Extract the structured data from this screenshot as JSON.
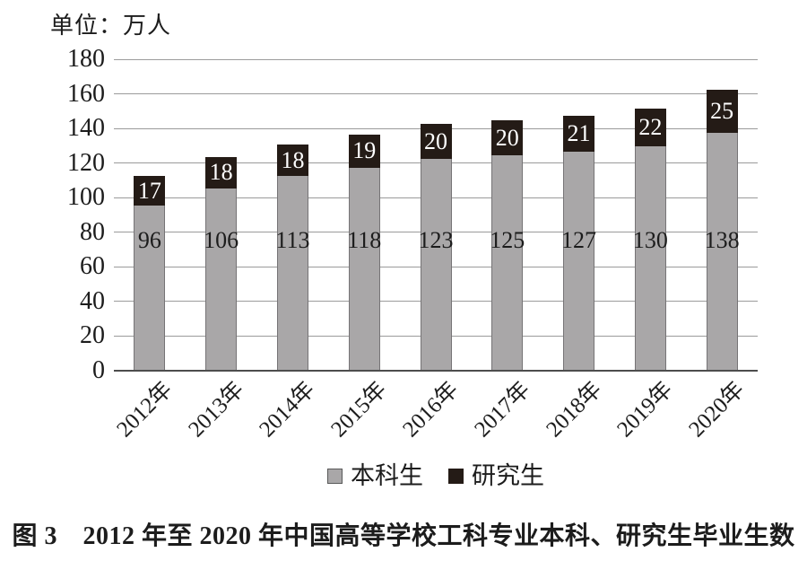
{
  "unit_label": "单位：万人",
  "caption": "图 3　2012 年至 2020 年中国高等学校工科专业本科、研究生毕业生数",
  "legend": {
    "items": [
      {
        "label": "本科生",
        "color": "#a9a7a8",
        "border": "#595959"
      },
      {
        "label": "研究生",
        "color": "#241b16",
        "border": "#241b16"
      }
    ]
  },
  "chart_data": {
    "type": "bar",
    "stacked": true,
    "title": "图 3　2012 年至 2020 年中国高等学校工科专业本科、研究生毕业生数",
    "unit": "万人",
    "categories": [
      "2012年",
      "2013年",
      "2014年",
      "2015年",
      "2016年",
      "2017年",
      "2018年",
      "2019年",
      "2020年"
    ],
    "series": [
      {
        "name": "本科生",
        "values": [
          96,
          106,
          113,
          118,
          123,
          125,
          127,
          130,
          138
        ],
        "color": "#a9a7a8",
        "border_color": "#767476",
        "label_color": "#1c1c1c"
      },
      {
        "name": "研究生",
        "values": [
          17,
          18,
          18,
          19,
          20,
          20,
          21,
          22,
          25
        ],
        "color": "#241b16",
        "border_color": "#241b16",
        "label_color": "#ffffff"
      }
    ],
    "ylim": [
      0,
      180
    ],
    "ytick_step": 20,
    "yticks": [
      0,
      20,
      40,
      60,
      80,
      100,
      120,
      140,
      160,
      180
    ],
    "grid": true,
    "gridline_color": "#9b9b9b",
    "legend_position": "bottom",
    "xlabel_rotation_deg": -45
  }
}
